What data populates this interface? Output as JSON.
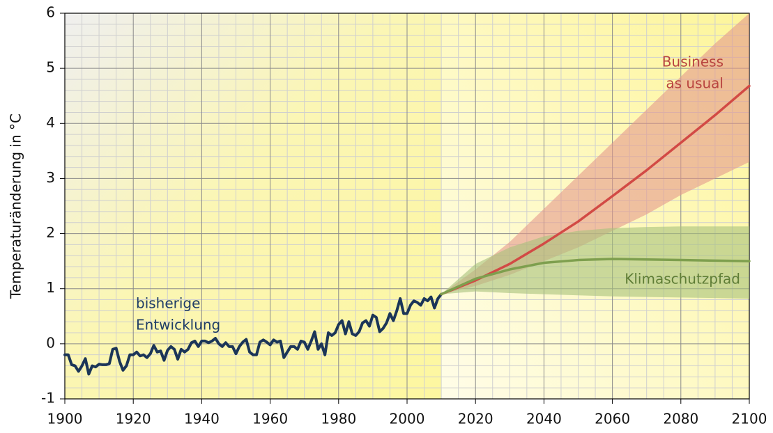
{
  "chart_data": {
    "type": "line",
    "ylabel": "Temperaturänderung in °C",
    "xlim": [
      1900,
      2100
    ],
    "xticks": [
      1900,
      1920,
      1940,
      1960,
      1980,
      2000,
      2020,
      2040,
      2060,
      2080,
      2100
    ],
    "ylim": [
      -1,
      6
    ],
    "yticks": [
      -1,
      0,
      1,
      2,
      3,
      4,
      5,
      6
    ],
    "grid": true,
    "series": [
      {
        "label": [
          "bisherige",
          "Entwicklung"
        ],
        "color": "#1b3558",
        "x": [
          1900,
          1901,
          1902,
          1903,
          1904,
          1905,
          1906,
          1907,
          1908,
          1909,
          1910,
          1911,
          1912,
          1913,
          1914,
          1915,
          1916,
          1917,
          1918,
          1919,
          1920,
          1921,
          1922,
          1923,
          1924,
          1925,
          1926,
          1927,
          1928,
          1929,
          1930,
          1931,
          1932,
          1933,
          1934,
          1935,
          1936,
          1937,
          1938,
          1939,
          1940,
          1941,
          1942,
          1943,
          1944,
          1945,
          1946,
          1947,
          1948,
          1949,
          1950,
          1951,
          1952,
          1953,
          1954,
          1955,
          1956,
          1957,
          1958,
          1959,
          1960,
          1961,
          1962,
          1963,
          1964,
          1965,
          1966,
          1967,
          1968,
          1969,
          1970,
          1971,
          1972,
          1973,
          1974,
          1975,
          1976,
          1977,
          1978,
          1979,
          1980,
          1981,
          1982,
          1983,
          1984,
          1985,
          1986,
          1987,
          1988,
          1989,
          1990,
          1991,
          1992,
          1993,
          1994,
          1995,
          1996,
          1997,
          1998,
          1999,
          2000,
          2001,
          2002,
          2003,
          2004,
          2005,
          2006,
          2007,
          2008,
          2009,
          2010
        ],
        "values": [
          -0.2,
          -0.2,
          -0.38,
          -0.4,
          -0.5,
          -0.4,
          -0.27,
          -0.55,
          -0.4,
          -0.42,
          -0.37,
          -0.38,
          -0.38,
          -0.36,
          -0.1,
          -0.08,
          -0.32,
          -0.48,
          -0.4,
          -0.2,
          -0.2,
          -0.15,
          -0.22,
          -0.2,
          -0.25,
          -0.18,
          -0.03,
          -0.15,
          -0.13,
          -0.3,
          -0.12,
          -0.05,
          -0.1,
          -0.28,
          -0.1,
          -0.15,
          -0.1,
          0.02,
          0.05,
          -0.05,
          0.05,
          0.05,
          0.02,
          0.05,
          0.1,
          0.0,
          -0.05,
          0.02,
          -0.05,
          -0.05,
          -0.18,
          -0.05,
          0.03,
          0.08,
          -0.15,
          -0.2,
          -0.2,
          0.03,
          0.07,
          0.03,
          -0.02,
          0.07,
          0.03,
          0.05,
          -0.25,
          -0.15,
          -0.05,
          -0.05,
          -0.1,
          0.05,
          0.03,
          -0.1,
          0.05,
          0.22,
          -0.1,
          0.0,
          -0.2,
          0.2,
          0.15,
          0.2,
          0.35,
          0.42,
          0.18,
          0.4,
          0.18,
          0.15,
          0.22,
          0.38,
          0.42,
          0.32,
          0.52,
          0.48,
          0.22,
          0.28,
          0.38,
          0.55,
          0.42,
          0.6,
          0.82,
          0.55,
          0.55,
          0.7,
          0.78,
          0.75,
          0.7,
          0.82,
          0.78,
          0.85,
          0.65,
          0.82,
          0.9
        ]
      },
      {
        "label": [
          "Business",
          "as usual"
        ],
        "color": "#d24a45",
        "band_color": "#e49a8c",
        "x": [
          2010,
          2020,
          2030,
          2040,
          2050,
          2060,
          2070,
          2080,
          2090,
          2100
        ],
        "values": [
          0.9,
          1.15,
          1.45,
          1.82,
          2.22,
          2.68,
          3.15,
          3.65,
          4.15,
          4.68
        ],
        "lower": [
          0.9,
          1.05,
          1.25,
          1.5,
          1.75,
          2.05,
          2.35,
          2.7,
          3.0,
          3.3
        ],
        "upper": [
          0.9,
          1.35,
          1.85,
          2.45,
          3.05,
          3.65,
          4.25,
          4.85,
          5.45,
          6.0
        ]
      },
      {
        "label": [
          "Klimaschutzpfad"
        ],
        "color": "#7e9f4e",
        "band_color": "#a6c27c",
        "x": [
          2010,
          2020,
          2030,
          2040,
          2050,
          2060,
          2070,
          2080,
          2090,
          2100
        ],
        "values": [
          0.9,
          1.18,
          1.35,
          1.47,
          1.52,
          1.54,
          1.53,
          1.52,
          1.51,
          1.5
        ],
        "lower": [
          0.9,
          0.95,
          0.92,
          0.9,
          0.88,
          0.86,
          0.85,
          0.84,
          0.83,
          0.82
        ],
        "upper": [
          0.9,
          1.45,
          1.75,
          1.95,
          2.05,
          2.1,
          2.12,
          2.13,
          2.13,
          2.13
        ]
      }
    ]
  }
}
